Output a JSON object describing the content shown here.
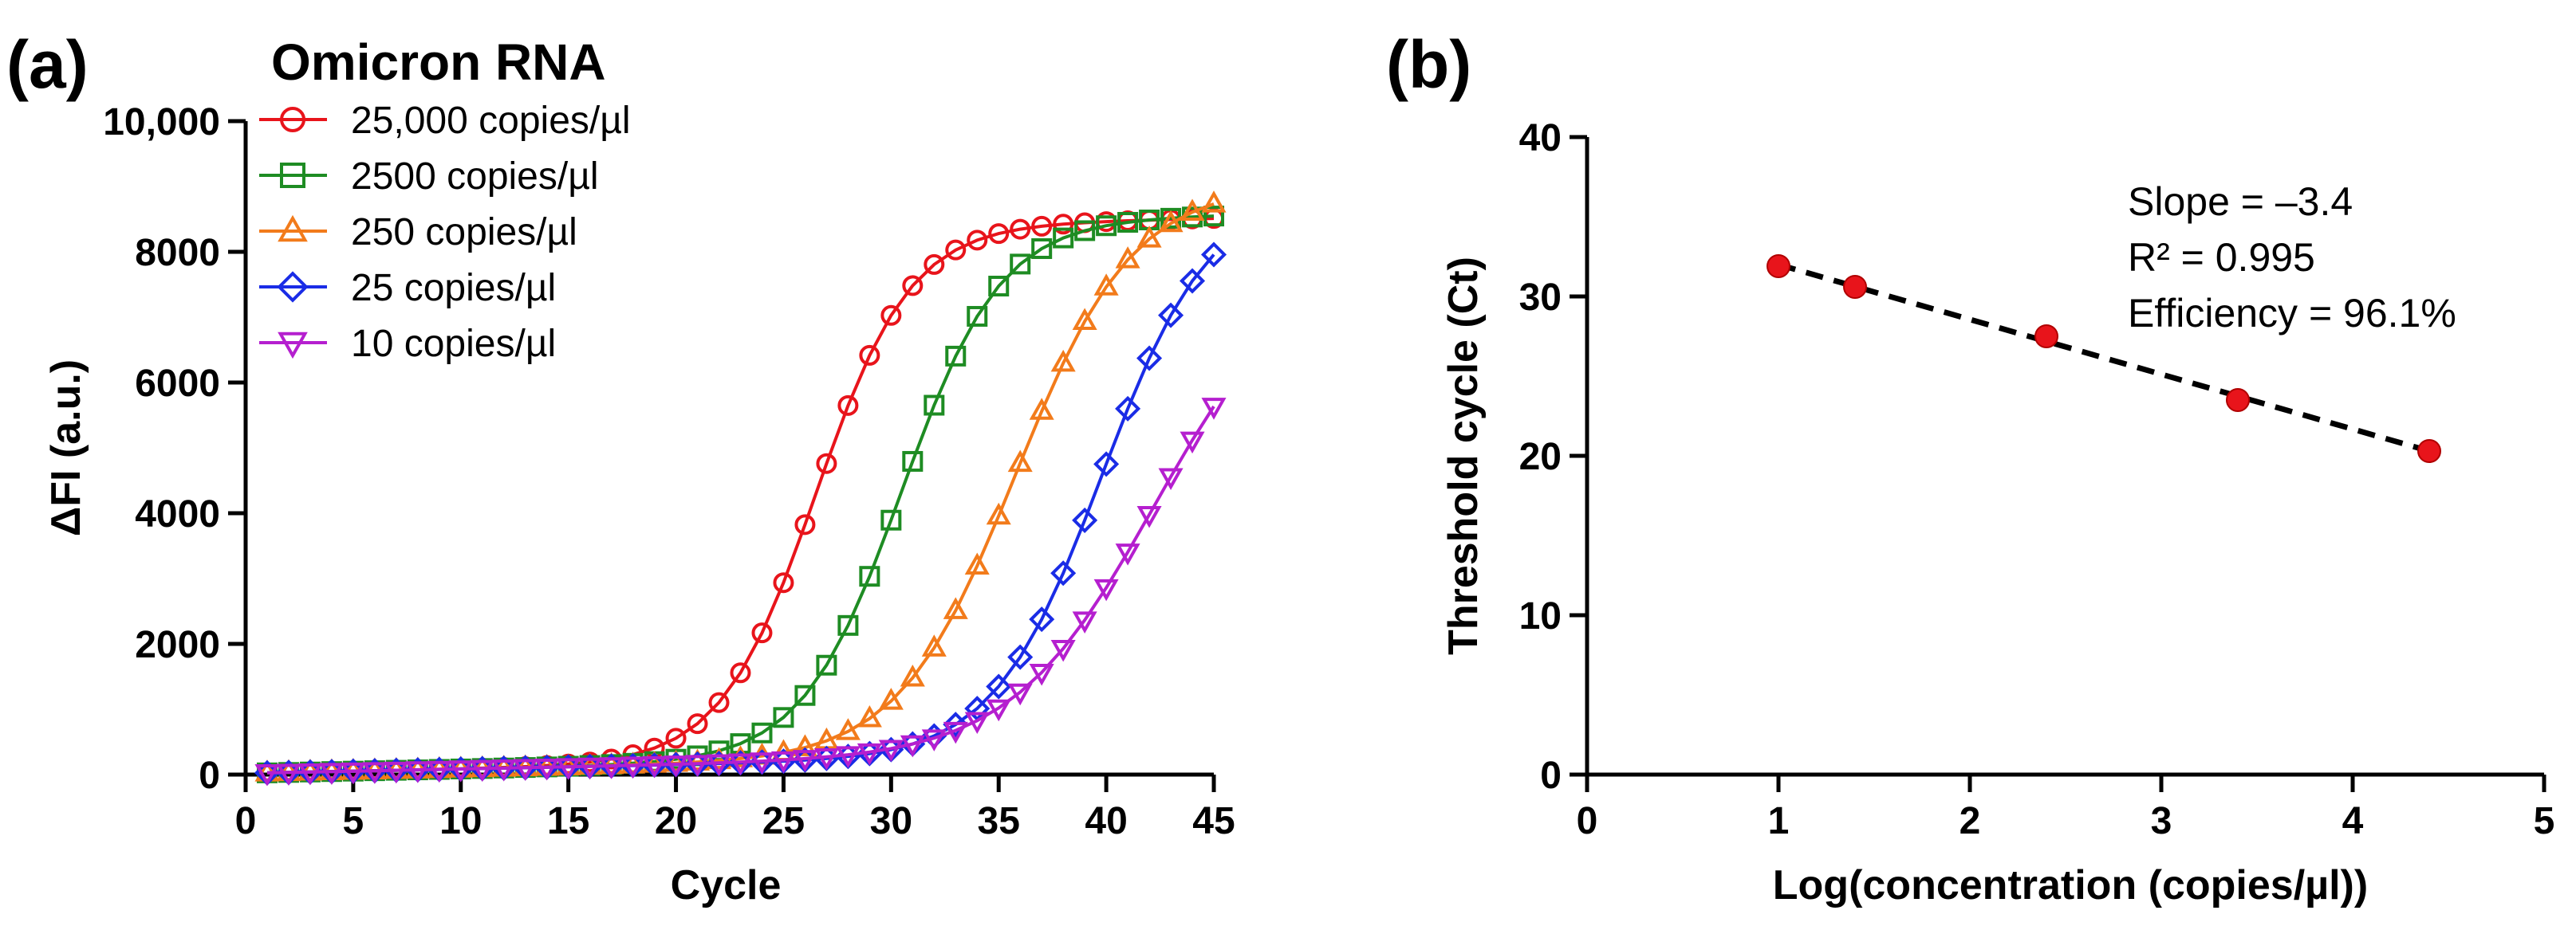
{
  "chart_data": [
    {
      "panel_label": "(a)",
      "type": "line",
      "title": "Omicron RNA",
      "xlabel": "Cycle",
      "ylabel": "ΔFI (a.u.)",
      "xlim": [
        0,
        45
      ],
      "ylim": [
        0,
        10000
      ],
      "xticks": [
        0,
        5,
        10,
        15,
        20,
        25,
        30,
        35,
        40,
        45
      ],
      "xtick_labels": [
        "0",
        "5",
        "10",
        "15",
        "20",
        "25",
        "30",
        "35",
        "40",
        "45"
      ],
      "yticks": [
        0,
        2000,
        4000,
        6000,
        8000,
        10000
      ],
      "ytick_labels": [
        "0",
        "2000",
        "4000",
        "6000",
        "8000",
        "10,000"
      ],
      "legend_position": "top-left",
      "series": [
        {
          "name": "25,000 copies/µl",
          "color": "#e8141b",
          "marker": "circle",
          "Ct": 26.5,
          "plateau": 8200,
          "slope": 2.2
        },
        {
          "name": "2500 copies/µl",
          "color": "#1e8c23",
          "marker": "square",
          "Ct": 30.5,
          "plateau": 8250,
          "slope": 2.3
        },
        {
          "name": "250 copies/µl",
          "color": "#f27b1b",
          "marker": "triangle-up",
          "Ct": 35.8,
          "plateau": 8700,
          "slope": 2.7
        },
        {
          "name": "25 copies/µl",
          "color": "#1a2ce6",
          "marker": "diamond",
          "Ct": 39.8,
          "plateau": 8600,
          "slope": 2.5
        },
        {
          "name": "10 copies/µl",
          "color": "#b51fcf",
          "marker": "triangle-down",
          "Ct": 42.2,
          "plateau": 7600,
          "slope": 3.3
        }
      ]
    },
    {
      "panel_label": "(b)",
      "type": "scatter",
      "xlabel": "Log(concentration (copies/µl))",
      "ylabel": "Threshold cycle (Ct)",
      "xlim": [
        0,
        5
      ],
      "ylim": [
        0,
        40
      ],
      "xticks": [
        0,
        1,
        2,
        3,
        4,
        5
      ],
      "xtick_labels": [
        "0",
        "1",
        "2",
        "3",
        "4",
        "5"
      ],
      "yticks": [
        0,
        10,
        20,
        30,
        40
      ],
      "ytick_labels": [
        "0",
        "10",
        "20",
        "30",
        "40"
      ],
      "points": [
        {
          "x": 1.0,
          "y": 31.9
        },
        {
          "x": 1.4,
          "y": 30.6
        },
        {
          "x": 2.4,
          "y": 27.5
        },
        {
          "x": 3.4,
          "y": 23.5
        },
        {
          "x": 4.4,
          "y": 20.3
        }
      ],
      "point_color": "#e8141b",
      "fit_line": {
        "x": [
          1.0,
          4.4
        ],
        "y": [
          32.0,
          20.3
        ],
        "style": "dashed"
      },
      "annotations": [
        "Slope = –3.4",
        "R² = 0.995",
        "Efficiency = 96.1%"
      ]
    }
  ]
}
